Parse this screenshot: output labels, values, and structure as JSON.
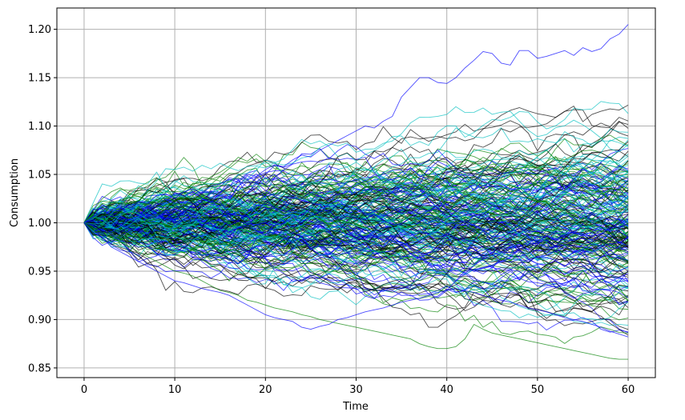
{
  "chart_data": {
    "type": "line",
    "title": "",
    "xlabel": "Time",
    "ylabel": "Consumption",
    "xlim": [
      -3,
      63
    ],
    "ylim": [
      0.84,
      1.222
    ],
    "x_ticks": [
      0,
      10,
      20,
      30,
      40,
      50,
      60
    ],
    "x_tick_labels": [
      "0",
      "10",
      "20",
      "30",
      "40",
      "50",
      "60"
    ],
    "y_ticks": [
      0.85,
      0.9,
      0.95,
      1.0,
      1.05,
      1.1,
      1.15,
      1.2
    ],
    "y_tick_labels": [
      "0.85",
      "0.90",
      "0.95",
      "1.00",
      "1.05",
      "1.10",
      "1.15",
      "1.20"
    ],
    "grid": true,
    "legend": "none",
    "x": [
      0,
      1,
      2,
      3,
      4,
      5,
      6,
      7,
      8,
      9,
      10,
      11,
      12,
      13,
      14,
      15,
      16,
      17,
      18,
      19,
      20,
      21,
      22,
      23,
      24,
      25,
      26,
      27,
      28,
      29,
      30,
      31,
      32,
      33,
      34,
      35,
      36,
      37,
      38,
      39,
      40,
      41,
      42,
      43,
      44,
      45,
      46,
      47,
      48,
      49,
      50,
      51,
      52,
      53,
      54,
      55,
      56,
      57,
      58,
      59,
      60
    ],
    "series_colors": [
      "#000000",
      "#0000ff",
      "#008000",
      "#00bfbf"
    ],
    "num_simulated_paths": 240,
    "highlighted_series": [
      {
        "color": "#0000ff",
        "values": [
          1.0,
          1.006,
          1.012,
          1.01,
          1.018,
          1.015,
          1.022,
          1.02,
          1.028,
          1.03,
          1.025,
          1.032,
          1.035,
          1.03,
          1.038,
          1.04,
          1.045,
          1.042,
          1.05,
          1.048,
          1.055,
          1.06,
          1.058,
          1.065,
          1.07,
          1.068,
          1.075,
          1.08,
          1.085,
          1.09,
          1.095,
          1.1,
          1.098,
          1.105,
          1.11,
          1.13,
          1.14,
          1.15,
          1.15,
          1.145,
          1.144,
          1.15,
          1.16,
          1.168,
          1.177,
          1.175,
          1.165,
          1.163,
          1.178,
          1.178,
          1.17,
          1.172,
          1.175,
          1.178,
          1.173,
          1.181,
          1.177,
          1.18,
          1.19,
          1.195,
          1.205
        ]
      },
      {
        "color": "#008000",
        "values": [
          1.0,
          0.995,
          0.99,
          0.985,
          0.98,
          0.975,
          0.97,
          0.965,
          0.96,
          0.955,
          0.95,
          0.948,
          0.945,
          0.94,
          0.935,
          0.93,
          0.928,
          0.925,
          0.92,
          0.918,
          0.915,
          0.912,
          0.91,
          0.908,
          0.905,
          0.903,
          0.9,
          0.898,
          0.896,
          0.894,
          0.892,
          0.89,
          0.888,
          0.886,
          0.884,
          0.882,
          0.88,
          0.875,
          0.872,
          0.87,
          0.87,
          0.872,
          0.88,
          0.895,
          0.89,
          0.886,
          0.884,
          0.882,
          0.88,
          0.878,
          0.876,
          0.874,
          0.872,
          0.87,
          0.868,
          0.866,
          0.864,
          0.862,
          0.86,
          0.859,
          0.859
        ]
      },
      {
        "color": "#0000ff",
        "values": [
          1.0,
          0.99,
          0.985,
          0.975,
          0.97,
          0.965,
          0.96,
          0.955,
          0.95,
          0.945,
          0.94,
          0.938,
          0.935,
          0.932,
          0.93,
          0.928,
          0.925,
          0.92,
          0.915,
          0.91,
          0.905,
          0.902,
          0.9,
          0.898,
          0.892,
          0.89,
          0.893,
          0.895,
          0.9,
          0.902,
          0.905,
          0.908,
          0.91,
          0.912,
          0.915,
          0.918,
          0.92,
          0.922,
          0.925,
          0.928,
          0.93,
          0.932,
          0.93,
          0.928,
          0.925,
          0.922,
          0.92,
          0.918,
          0.915,
          0.912,
          0.91,
          0.908,
          0.905,
          0.902,
          0.9,
          0.898,
          0.895,
          0.892,
          0.888,
          0.885,
          0.882
        ]
      }
    ]
  }
}
